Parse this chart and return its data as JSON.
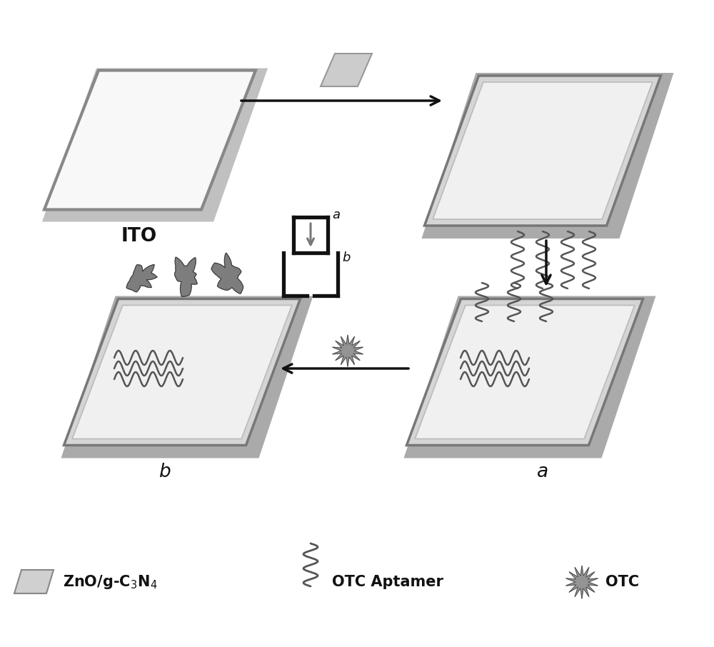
{
  "bg_color": "#ffffff",
  "panel_face": "#e0e0e0",
  "panel_edge": "#888888",
  "panel_shadow": "#aaaaaa",
  "arrow_color": "#111111",
  "wavy_color": "#555555",
  "blob_color": "#666666",
  "star_color": "#777777",
  "label_ito": "ITO",
  "label_a": "a",
  "label_b": "b",
  "legend_aptamer": "OTC Aptamer",
  "legend_otc": "OTC"
}
